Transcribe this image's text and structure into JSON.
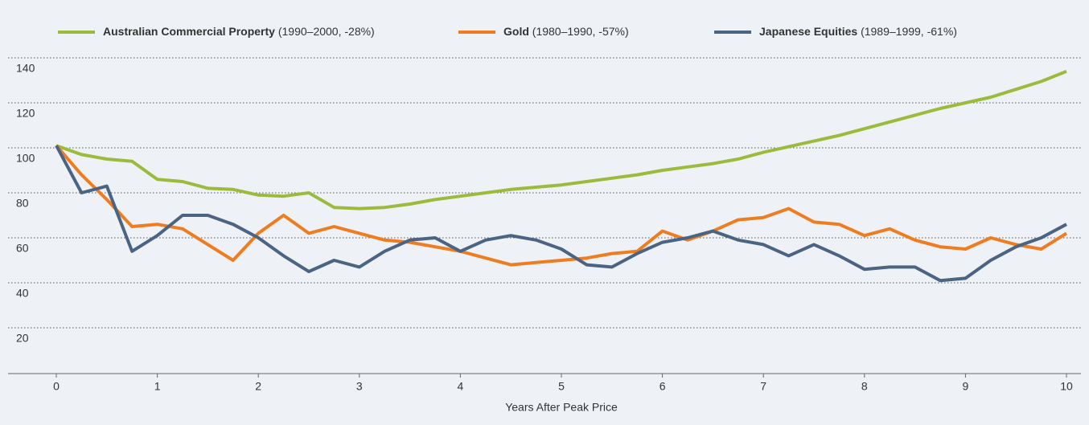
{
  "chart_data": {
    "type": "line",
    "x_label": "Years After Peak Price",
    "x": [
      0,
      0.25,
      0.5,
      0.75,
      1,
      1.25,
      1.5,
      1.75,
      2,
      2.25,
      2.5,
      2.75,
      3,
      3.25,
      3.5,
      3.75,
      4,
      4.25,
      4.5,
      4.75,
      5,
      5.25,
      5.5,
      5.75,
      6,
      6.25,
      6.5,
      6.75,
      7,
      7.25,
      7.5,
      7.75,
      8,
      8.25,
      8.5,
      8.75,
      9,
      9.25,
      9.5,
      9.75,
      10
    ],
    "xlim": [
      0,
      10
    ],
    "xticks": [
      0,
      1,
      2,
      3,
      4,
      5,
      6,
      7,
      8,
      9,
      10
    ],
    "ylim": [
      0,
      140
    ],
    "yticks": [
      20,
      40,
      60,
      80,
      100,
      120,
      140
    ],
    "grid": true,
    "legend": "top",
    "series": [
      {
        "name": "Australian Commercial Property",
        "detail": "(1990–2000, -28%)",
        "color": "#9bbb3c",
        "values": [
          101,
          97,
          95,
          94,
          86,
          85,
          82,
          81.5,
          79,
          78.5,
          80,
          73.5,
          73,
          73.5,
          75,
          77,
          78.5,
          80,
          81.5,
          82.5,
          83.5,
          85,
          86.5,
          88,
          90,
          91.5,
          93,
          95,
          98,
          100.5,
          103,
          105.5,
          108.5,
          111.5,
          114.5,
          117.5,
          120,
          122.5,
          126,
          129.5,
          134
        ]
      },
      {
        "name": "Gold",
        "detail": "(1980–1990, -57%)",
        "color": "#ee7d22",
        "values": [
          101,
          88,
          77,
          65,
          66,
          64,
          57,
          50,
          62,
          70,
          62,
          65,
          62,
          59,
          58,
          56,
          54,
          51,
          48,
          49,
          50,
          51,
          53,
          54,
          63,
          59,
          63,
          68,
          69,
          73,
          67,
          66,
          61,
          64,
          59,
          56,
          55,
          60,
          57,
          55,
          62
        ]
      },
      {
        "name": "Japanese Equities",
        "detail": "(1989–1999, -61%)",
        "color": "#4b6483",
        "values": [
          101,
          80,
          83,
          54,
          61,
          70,
          70,
          66,
          60,
          52,
          45,
          50,
          47,
          54,
          59,
          60,
          54,
          59,
          61,
          59,
          55,
          48,
          47,
          53,
          58,
          60,
          63,
          59,
          57,
          52,
          57,
          52,
          46,
          47,
          47,
          41,
          42,
          50,
          56,
          60,
          66
        ]
      }
    ]
  }
}
